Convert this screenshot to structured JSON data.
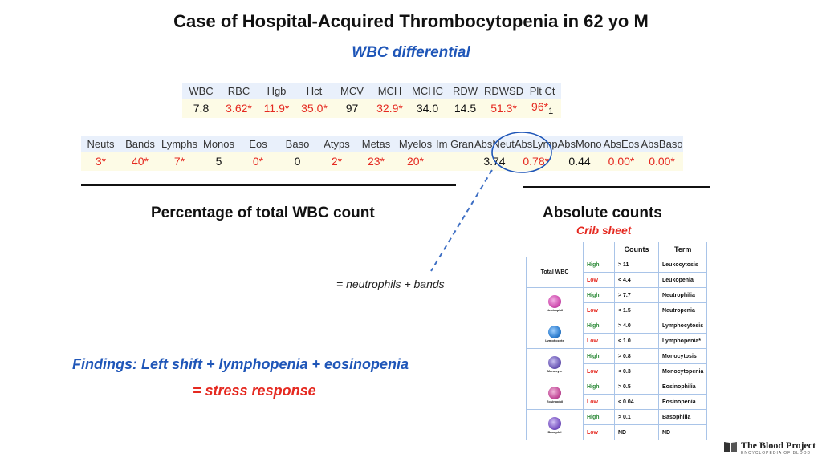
{
  "title": "Case of Hospital-Acquired Thrombocytopenia in 62 yo M",
  "subtitle": "WBC differential",
  "cbc": {
    "headers": [
      "WBC",
      "RBC",
      "Hgb",
      "Hct",
      "MCV",
      "MCH",
      "MCHC",
      "RDW",
      "RDWSD",
      "Plt Ct"
    ],
    "values": [
      "7.8",
      "3.62*",
      "11.9*",
      "35.0*",
      "97",
      "32.9*",
      "34.0",
      "14.5",
      "51.3*",
      "96*"
    ],
    "footnote": "1"
  },
  "differential": {
    "headers": [
      "Neuts",
      "Bands",
      "Lymphs",
      "Monos",
      "Eos",
      "Baso",
      "Atyps",
      "Metas",
      "Myelos",
      "Im Gran",
      "AbsNeut",
      "AbsLymp",
      "AbsMono",
      "AbsEos",
      "AbsBaso"
    ],
    "values": [
      "3*",
      "40*",
      "7*",
      "5",
      "0*",
      "0",
      "2*",
      "23*",
      "20*",
      "",
      "3.74",
      "0.78*",
      "0.44",
      "0.00*",
      "0.00*"
    ]
  },
  "left_section": {
    "heading": "Percentage of total WBC count"
  },
  "right_section": {
    "heading": "Absolute counts",
    "subheading": "Crib sheet"
  },
  "annotation": "= neutrophils + bands",
  "findings": "Findings: Left shift + lymphopenia + eosinopenia",
  "conclusion": "= stress response",
  "crib_sheet": {
    "col_counts": "Counts",
    "col_term": "Term",
    "rows": [
      {
        "label": "Total WBC",
        "icon": "",
        "high": "High",
        "high_count": "> 11",
        "high_term": "Leukocytosis",
        "low": "Low",
        "low_count": "< 4.4",
        "low_term": "Leukopenia"
      },
      {
        "label": "Neutrophil",
        "icon": "neutrophil-icon",
        "high": "High",
        "high_count": "> 7.7",
        "high_term": "Neutrophilia",
        "low": "Low",
        "low_count": "< 1.5",
        "low_term": "Neutropenia"
      },
      {
        "label": "Lymphocyte",
        "icon": "lymphocyte-icon",
        "high": "High",
        "high_count": "> 4.0",
        "high_term": "Lymphocytosis",
        "low": "Low",
        "low_count": "< 1.0",
        "low_term": "Lymphopenia*"
      },
      {
        "label": "Monocyte",
        "icon": "monocyte-icon",
        "high": "High",
        "high_count": "> 0.8",
        "high_term": "Monocytosis",
        "low": "Low",
        "low_count": "< 0.3",
        "low_term": "Monocytopenia"
      },
      {
        "label": "Eosinophil",
        "icon": "eosinophil-icon",
        "high": "High",
        "high_count": "> 0.5",
        "high_term": "Eosinophilia",
        "low": "Low",
        "low_count": "< 0.04",
        "low_term": "Eosinopenia"
      },
      {
        "label": "Basophil",
        "icon": "basophil-icon",
        "high": "High",
        "high_count": "> 0.1",
        "high_term": "Basophilia",
        "low": "Low",
        "low_count": "ND",
        "low_term": "ND"
      }
    ]
  },
  "logo": {
    "name": "The Blood Project",
    "tagline": "ENCYCLOPEDIA OF BLOOD"
  },
  "colors": {
    "blue": "#1f56b8",
    "red": "#e52920",
    "header_bg": "#e9f0fb",
    "value_bg": "#fdfbe6",
    "neutrophil": "#d04fb0",
    "lymphocyte": "#2f7fd0",
    "monocyte": "#6e5bb8",
    "eosinophil": "#c44c9a",
    "basophil": "#7a55c4"
  }
}
